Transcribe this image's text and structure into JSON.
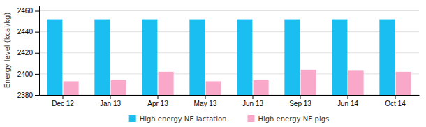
{
  "chart_data": {
    "type": "bar",
    "categories": [
      "Dec 12",
      "Jan 13",
      "Apr 13",
      "May 13",
      "Jun 13",
      "Sep 13",
      "Jun 14",
      "Oct 14"
    ],
    "series": [
      {
        "name": "High energy NE lactation",
        "color": "#1BBEF0",
        "values": [
          2452,
          2452,
          2452,
          2452,
          2452,
          2452,
          2452,
          2452
        ]
      },
      {
        "name": "High energy NE pigs",
        "color": "#F9A8C9",
        "values": [
          2393,
          2394,
          2402,
          2393,
          2394,
          2404,
          2403,
          2402
        ]
      }
    ],
    "ylabel": "Energy level (kcal/kg)",
    "ylim": [
      2380,
      2465
    ],
    "yticks": [
      2380,
      2400,
      2420,
      2440,
      2460
    ],
    "grid": true,
    "legend": "bottom"
  }
}
